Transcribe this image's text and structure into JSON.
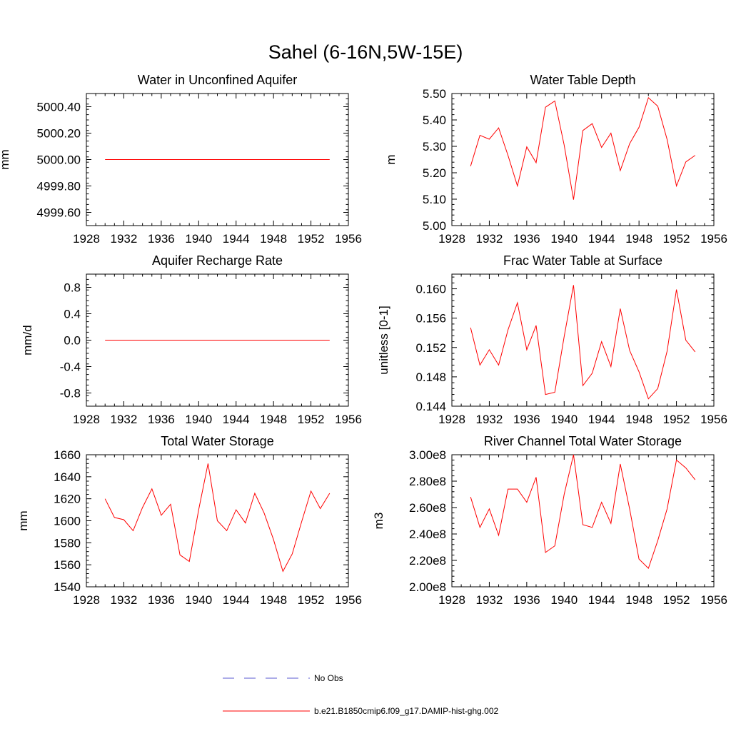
{
  "figure": {
    "title": "Sahel (6-16N,5W-15E)"
  },
  "legend": {
    "entries": [
      {
        "label": "No Obs",
        "color": "#5a5ad2",
        "dash": "dashed"
      },
      {
        "label": "b.e21.B1850cmip6.f09_g17.DAMIP-hist-ghg.002",
        "color": "#ff0000",
        "dash": "solid"
      }
    ]
  },
  "chart_data": [
    {
      "type": "line",
      "title": "Water in Unconfined Aquifer",
      "xlabel": "",
      "ylabel": "mm",
      "xlim": [
        1928,
        1956
      ],
      "ylim": [
        4999.5,
        5000.5
      ],
      "xticks": [
        1928,
        1932,
        1936,
        1940,
        1944,
        1948,
        1952,
        1956
      ],
      "yticks": [
        4999.6,
        4999.8,
        5000.0,
        5000.2,
        5000.4
      ],
      "ytick_labels": [
        "4999.60",
        "4999.80",
        "5000.00",
        "5000.20",
        "5000.40"
      ],
      "series": [
        {
          "x": [
            1930,
            1931,
            1932,
            1933,
            1934,
            1935,
            1936,
            1937,
            1938,
            1939,
            1940,
            1941,
            1942,
            1943,
            1944,
            1945,
            1946,
            1947,
            1948,
            1949,
            1950,
            1951,
            1952,
            1953,
            1954
          ],
          "values": [
            5000,
            5000,
            5000,
            5000,
            5000,
            5000,
            5000,
            5000,
            5000,
            5000,
            5000,
            5000,
            5000,
            5000,
            5000,
            5000,
            5000,
            5000,
            5000,
            5000,
            5000,
            5000,
            5000,
            5000,
            5000
          ],
          "color": "#ff0000"
        }
      ]
    },
    {
      "type": "line",
      "title": "Water Table Depth",
      "xlabel": "",
      "ylabel": "m",
      "xlim": [
        1928,
        1956
      ],
      "ylim": [
        5.0,
        5.5
      ],
      "xticks": [
        1928,
        1932,
        1936,
        1940,
        1944,
        1948,
        1952,
        1956
      ],
      "yticks": [
        5.0,
        5.1,
        5.2,
        5.3,
        5.4,
        5.5
      ],
      "ytick_labels": [
        "5.00",
        "5.10",
        "5.20",
        "5.30",
        "5.40",
        "5.50"
      ],
      "series": [
        {
          "x": [
            1930,
            1931,
            1932,
            1933,
            1934,
            1935,
            1936,
            1937,
            1938,
            1939,
            1940,
            1941,
            1942,
            1943,
            1944,
            1945,
            1946,
            1947,
            1948,
            1949,
            1950,
            1951,
            1952,
            1953,
            1954
          ],
          "values": [
            5.225,
            5.342,
            5.327,
            5.37,
            5.266,
            5.15,
            5.298,
            5.238,
            5.448,
            5.472,
            5.305,
            5.098,
            5.36,
            5.386,
            5.296,
            5.35,
            5.208,
            5.31,
            5.372,
            5.484,
            5.452,
            5.326,
            5.15,
            5.241,
            5.266
          ],
          "color": "#ff0000"
        }
      ]
    },
    {
      "type": "line",
      "title": "Aquifer Recharge Rate",
      "xlabel": "",
      "ylabel": "mm/d",
      "xlim": [
        1928,
        1956
      ],
      "ylim": [
        -1.0,
        1.0
      ],
      "xticks": [
        1928,
        1932,
        1936,
        1940,
        1944,
        1948,
        1952,
        1956
      ],
      "yticks": [
        -0.8,
        -0.4,
        0.0,
        0.4,
        0.8
      ],
      "ytick_labels": [
        "-0.8",
        "-0.4",
        "0.0",
        "0.4",
        "0.8"
      ],
      "series": [
        {
          "x": [
            1930,
            1931,
            1932,
            1933,
            1934,
            1935,
            1936,
            1937,
            1938,
            1939,
            1940,
            1941,
            1942,
            1943,
            1944,
            1945,
            1946,
            1947,
            1948,
            1949,
            1950,
            1951,
            1952,
            1953,
            1954
          ],
          "values": [
            0,
            0,
            0,
            0,
            0,
            0,
            0,
            0,
            0,
            0,
            0,
            0,
            0,
            0,
            0,
            0,
            0,
            0,
            0,
            0,
            0,
            0,
            0,
            0,
            0
          ],
          "color": "#ff0000"
        }
      ]
    },
    {
      "type": "line",
      "title": "Frac Water Table at Surface",
      "xlabel": "",
      "ylabel": "unitless [0-1]",
      "xlim": [
        1928,
        1956
      ],
      "ylim": [
        0.144,
        0.162
      ],
      "xticks": [
        1928,
        1932,
        1936,
        1940,
        1944,
        1948,
        1952,
        1956
      ],
      "yticks": [
        0.144,
        0.148,
        0.152,
        0.156,
        0.16
      ],
      "ytick_labels": [
        "0.144",
        "0.148",
        "0.152",
        "0.156",
        "0.160"
      ],
      "series": [
        {
          "x": [
            1930,
            1931,
            1932,
            1933,
            1934,
            1935,
            1936,
            1937,
            1938,
            1939,
            1940,
            1941,
            1942,
            1943,
            1944,
            1945,
            1946,
            1947,
            1948,
            1949,
            1950,
            1951,
            1952,
            1953,
            1954
          ],
          "values": [
            0.1547,
            0.1496,
            0.1517,
            0.1496,
            0.1544,
            0.1581,
            0.1517,
            0.155,
            0.1456,
            0.1459,
            0.1535,
            0.1605,
            0.1468,
            0.1485,
            0.1528,
            0.1494,
            0.1573,
            0.1516,
            0.1487,
            0.145,
            0.1464,
            0.1515,
            0.1599,
            0.153,
            0.1514
          ],
          "color": "#ff0000"
        }
      ]
    },
    {
      "type": "line",
      "title": "Total Water Storage",
      "xlabel": "",
      "ylabel": "mm",
      "xlim": [
        1928,
        1956
      ],
      "ylim": [
        1540,
        1660
      ],
      "xticks": [
        1928,
        1932,
        1936,
        1940,
        1944,
        1948,
        1952,
        1956
      ],
      "yticks": [
        1540,
        1560,
        1580,
        1600,
        1620,
        1640,
        1660
      ],
      "ytick_labels": [
        "1540",
        "1560",
        "1580",
        "1600",
        "1620",
        "1640",
        "1660"
      ],
      "series": [
        {
          "x": [
            1930,
            1931,
            1932,
            1933,
            1934,
            1935,
            1936,
            1937,
            1938,
            1939,
            1940,
            1941,
            1942,
            1943,
            1944,
            1945,
            1946,
            1947,
            1948,
            1949,
            1950,
            1951,
            1952,
            1953,
            1954
          ],
          "values": [
            1620,
            1603,
            1601,
            1591,
            1612,
            1629,
            1605,
            1615,
            1569,
            1563,
            1610,
            1652,
            1600,
            1591,
            1610,
            1598,
            1625,
            1607,
            1583,
            1554,
            1570,
            1599,
            1627,
            1611,
            1625
          ],
          "color": "#ff0000"
        }
      ]
    },
    {
      "type": "line",
      "title": "River Channel Total Water Storage",
      "xlabel": "",
      "ylabel": "m3",
      "xlim": [
        1928,
        1956
      ],
      "ylim": [
        200000000,
        300000000
      ],
      "xticks": [
        1928,
        1932,
        1936,
        1940,
        1944,
        1948,
        1952,
        1956
      ],
      "yticks": [
        200000000,
        220000000,
        240000000,
        260000000,
        280000000,
        300000000
      ],
      "ytick_labels": [
        "2.00e8",
        "2.20e8",
        "2.40e8",
        "2.60e8",
        "2.80e8",
        "3.00e8"
      ],
      "series": [
        {
          "x": [
            1930,
            1931,
            1932,
            1933,
            1934,
            1935,
            1936,
            1937,
            1938,
            1939,
            1940,
            1941,
            1942,
            1943,
            1944,
            1945,
            1946,
            1947,
            1948,
            1949,
            1950,
            1951,
            1952,
            1953,
            1954
          ],
          "values": [
            268000000,
            245000000,
            259000000,
            239000000,
            274000000,
            274000000,
            264000000,
            283000000,
            226000000,
            231000000,
            270000000,
            300000000,
            247000000,
            245000000,
            264000000,
            248000000,
            293000000,
            259000000,
            221000000,
            214000000,
            235000000,
            259000000,
            296000000,
            290000000,
            281000000
          ],
          "color": "#ff0000"
        }
      ]
    }
  ]
}
